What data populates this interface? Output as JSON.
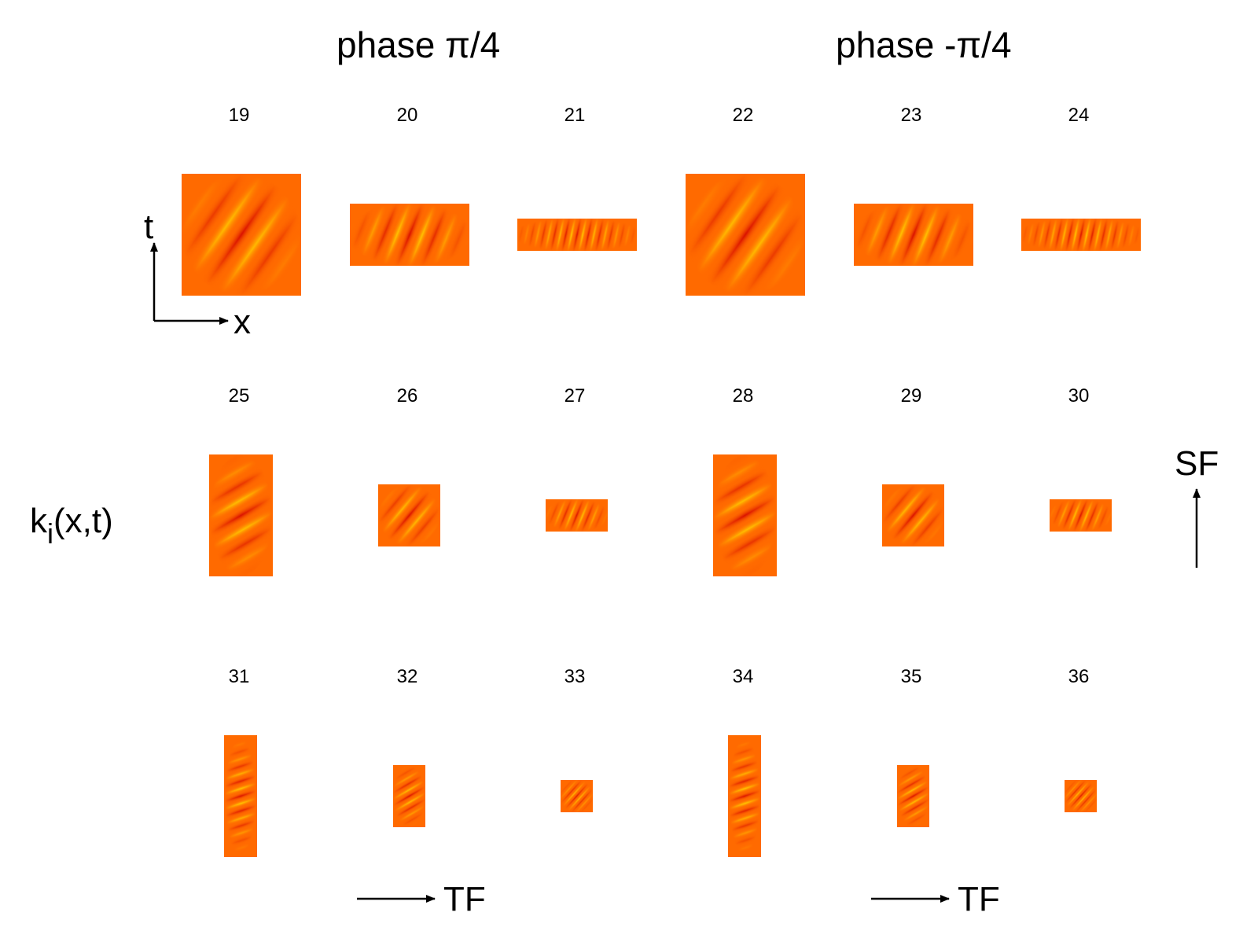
{
  "titles": {
    "left": "phase π/4",
    "right": "phase -π/4"
  },
  "axis": {
    "t_label": "t",
    "x_label": "x",
    "kernel_label_main": "k",
    "kernel_label_sub": "i",
    "kernel_label_args": "(x,t)",
    "sf_label": "SF",
    "tf_label_left": "TF",
    "tf_label_right": "TF"
  },
  "panels": [
    {
      "id": "19",
      "label": "19"
    },
    {
      "id": "20",
      "label": "20"
    },
    {
      "id": "21",
      "label": "21"
    },
    {
      "id": "22",
      "label": "22"
    },
    {
      "id": "23",
      "label": "23"
    },
    {
      "id": "24",
      "label": "24"
    },
    {
      "id": "25",
      "label": "25"
    },
    {
      "id": "26",
      "label": "26"
    },
    {
      "id": "27",
      "label": "27"
    },
    {
      "id": "28",
      "label": "28"
    },
    {
      "id": "29",
      "label": "29"
    },
    {
      "id": "30",
      "label": "30"
    },
    {
      "id": "31",
      "label": "31"
    },
    {
      "id": "32",
      "label": "32"
    },
    {
      "id": "33",
      "label": "33"
    },
    {
      "id": "34",
      "label": "34"
    },
    {
      "id": "35",
      "label": "35"
    },
    {
      "id": "36",
      "label": "36"
    }
  ],
  "colors": {
    "background_orange": "#ff6a00",
    "stripe_dark": "#d90f00",
    "stripe_light": "#ffd400"
  }
}
